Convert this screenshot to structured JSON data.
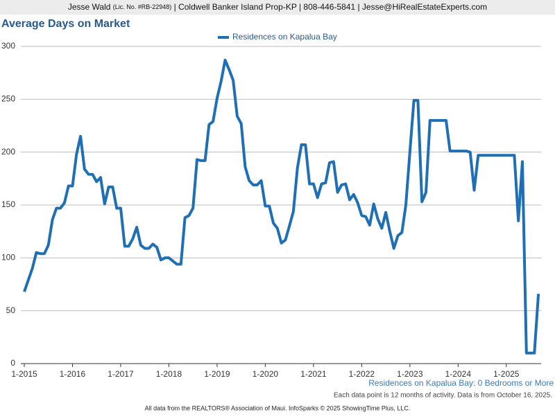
{
  "header": {
    "name": "Jesse Wald",
    "license": "(Lic. No. #RB-22948)",
    "details": "| Coldwell Banker Island Prop-KP | 808-446-5841 | Jesse@HiRealEstateExperts.com"
  },
  "chart_data": {
    "type": "line",
    "title": "Average Days on Market",
    "categories": [
      "1-2015",
      null,
      null,
      null,
      null,
      null,
      null,
      null,
      null,
      null,
      null,
      null,
      "1-2016",
      null,
      null,
      null,
      null,
      null,
      null,
      null,
      null,
      null,
      null,
      null,
      "1-2017",
      null,
      null,
      null,
      null,
      null,
      null,
      null,
      null,
      null,
      null,
      null,
      "1-2018",
      null,
      null,
      null,
      null,
      null,
      null,
      null,
      null,
      null,
      null,
      null,
      "1-2019",
      null,
      null,
      null,
      null,
      null,
      null,
      null,
      null,
      null,
      null,
      null,
      "1-2020",
      null,
      null,
      null,
      null,
      null,
      null,
      null,
      null,
      null,
      null,
      null,
      "1-2021",
      null,
      null,
      null,
      null,
      null,
      null,
      null,
      null,
      null,
      null,
      null,
      "1-2022",
      null,
      null,
      null,
      null,
      null,
      null,
      null,
      null,
      null,
      null,
      null,
      "1-2023",
      null,
      null,
      null,
      null,
      null,
      null,
      null,
      null,
      null,
      null,
      null,
      "1-2024",
      null,
      null,
      null,
      null,
      null,
      null,
      null,
      null,
      null,
      null,
      null,
      "1-2025",
      null,
      null,
      null,
      null,
      null,
      null,
      null,
      null
    ],
    "series": [
      {
        "name": "Residences on Kapalua Bay",
        "color": "#1f6fb5",
        "values": [
          68,
          79,
          90,
          105,
          104,
          104,
          112,
          136,
          147,
          147,
          152,
          168,
          168,
          198,
          215,
          184,
          179,
          179,
          172,
          176,
          151,
          167,
          167,
          147,
          147,
          111,
          111,
          118,
          129,
          112,
          109,
          109,
          113,
          110,
          98,
          100,
          100,
          97,
          94,
          94,
          138,
          140,
          147,
          193,
          192,
          192,
          226,
          229,
          251,
          267,
          287,
          278,
          268,
          234,
          227,
          186,
          173,
          169,
          169,
          173,
          149,
          149,
          133,
          128,
          114,
          117,
          130,
          144,
          185,
          207,
          207,
          170,
          170,
          157,
          170,
          171,
          190,
          191,
          162,
          169,
          170,
          155,
          160,
          152,
          140,
          139,
          131,
          151,
          137,
          128,
          143,
          125,
          109,
          121,
          124,
          150,
          200,
          249,
          249,
          153,
          162,
          230,
          230,
          230,
          230,
          230,
          201,
          201,
          201,
          201,
          201,
          200,
          164,
          197,
          197,
          197,
          197,
          197,
          197,
          197,
          197,
          197,
          197,
          135,
          191,
          10,
          10,
          10,
          66
        ]
      }
    ],
    "ylim": [
      0,
      300
    ],
    "yticks": [
      0,
      50,
      100,
      150,
      200,
      250,
      300
    ],
    "grid": true,
    "subtitle": "Residences on Kapalua Bay: 0 Bedrooms or More",
    "note": "Each data point is 12 months of activity. Data is from October 16, 2025.",
    "source": "All data from the REALTORS® Association of Maui. InfoSparks © 2025 ShowingTime Plus, LLC."
  }
}
